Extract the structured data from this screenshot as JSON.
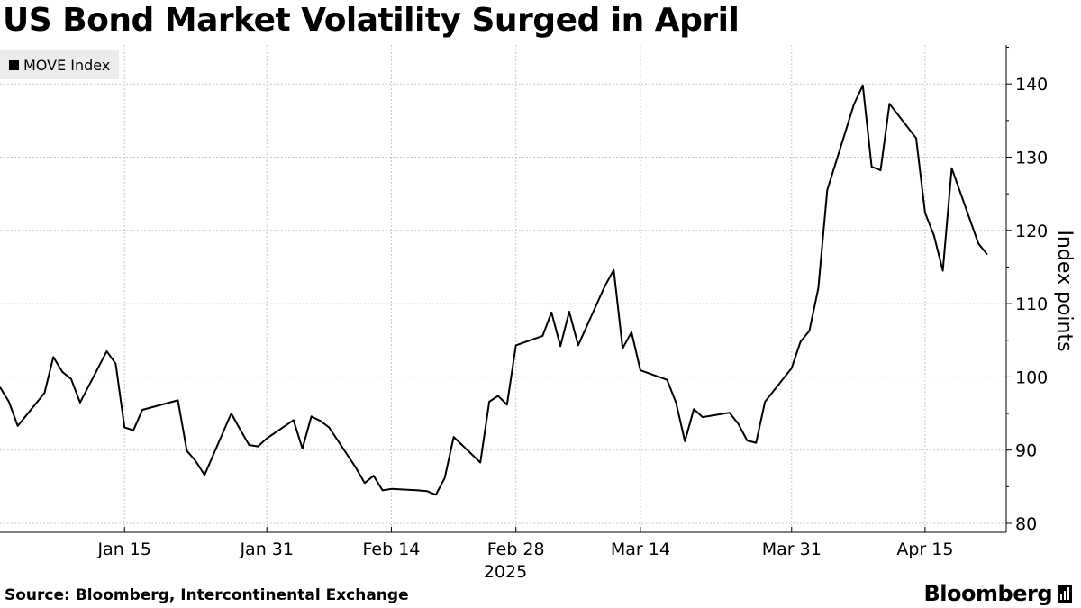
{
  "title": "US Bond Market Volatility Surged in April",
  "legend": {
    "label": "MOVE Index",
    "color": "#000000"
  },
  "footer": {
    "source": "Source: Bloomberg, Intercontinental Exchange",
    "brand": "Bloomberg"
  },
  "chart_data": {
    "type": "line",
    "title": "US Bond Market Volatility Surged in April",
    "xlabel": "",
    "ylabel": "Index points",
    "ylim": [
      78,
      145
    ],
    "yticks": [
      80,
      90,
      100,
      110,
      120,
      130,
      140
    ],
    "year_label": "2025",
    "xticks": [
      {
        "day": 15,
        "label": "Jan 15"
      },
      {
        "day": 31,
        "label": "Jan 31"
      },
      {
        "day": 45,
        "label": "Feb 14"
      },
      {
        "day": 59,
        "label": "Feb 28"
      },
      {
        "day": 73,
        "label": "Mar 14"
      },
      {
        "day": 90,
        "label": "Mar 31"
      },
      {
        "day": 105,
        "label": "Apr 15"
      }
    ],
    "grid": true,
    "series": [
      {
        "name": "MOVE Index",
        "color": "#000000",
        "x": [
          1,
          2,
          3,
          6,
          7,
          8,
          9,
          10,
          13,
          14,
          15,
          16,
          17,
          21,
          22,
          23,
          24,
          27,
          28,
          29,
          30,
          31,
          34,
          35,
          36,
          37,
          38,
          41,
          42,
          43,
          44,
          45,
          48,
          49,
          50,
          51,
          52,
          55,
          56,
          57,
          58,
          59,
          62,
          63,
          64,
          65,
          66,
          69,
          70,
          71,
          72,
          73,
          76,
          77,
          78,
          79,
          80,
          83,
          84,
          85,
          86,
          87,
          90,
          91,
          92,
          93,
          94,
          97,
          98,
          99,
          100,
          101,
          104,
          105,
          106,
          107,
          108,
          111,
          112
        ],
        "values": [
          98.6,
          96.6,
          93.3,
          97.8,
          102.7,
          100.7,
          99.7,
          96.5,
          103.5,
          101.8,
          93.1,
          92.7,
          95.5,
          96.8,
          89.9,
          88.5,
          86.6,
          95.0,
          92.8,
          90.7,
          90.5,
          91.6,
          94.1,
          90.2,
          94.6,
          94.0,
          93.1,
          87.6,
          85.5,
          86.5,
          84.5,
          84.7,
          84.5,
          84.4,
          83.9,
          86.2,
          91.8,
          88.3,
          96.6,
          97.4,
          96.2,
          104.3,
          105.6,
          108.8,
          104.2,
          108.9,
          104.3,
          112.4,
          114.6,
          103.9,
          106.1,
          100.9,
          99.6,
          96.5,
          91.2,
          95.6,
          94.5,
          95.1,
          93.6,
          91.3,
          91.0,
          96.6,
          101.2,
          104.8,
          106.3,
          112.1,
          125.5,
          137.2,
          139.8,
          128.7,
          128.2,
          137.3,
          132.6,
          122.4,
          119.3,
          114.5,
          128.5,
          118.2,
          116.7
        ]
      }
    ]
  }
}
